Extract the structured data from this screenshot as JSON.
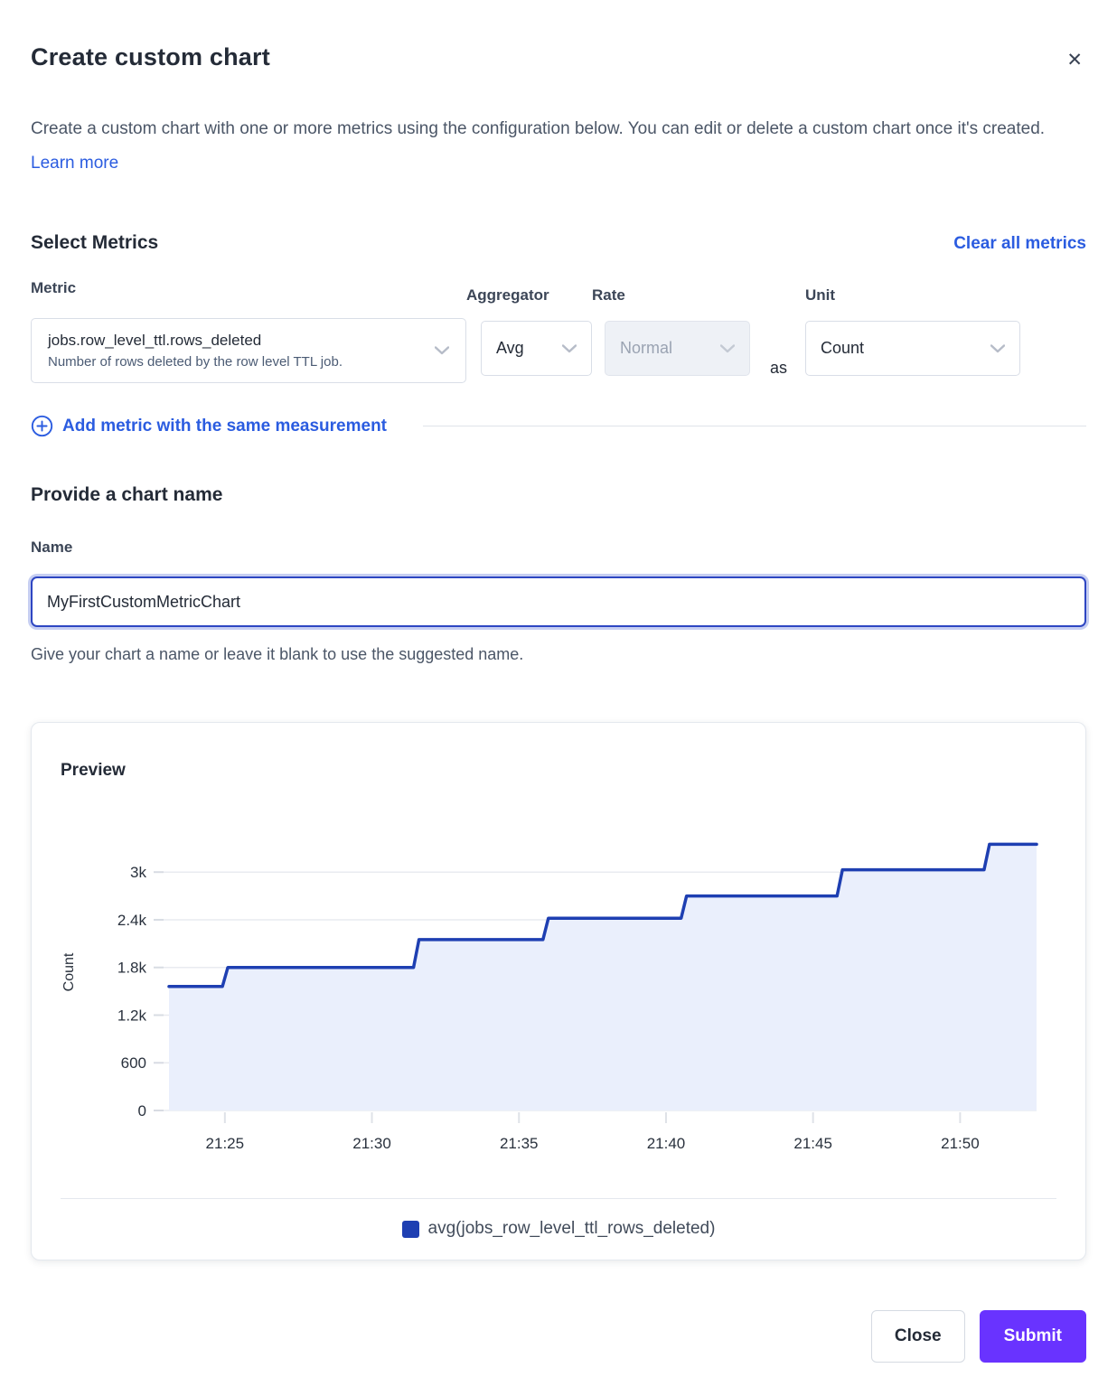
{
  "modal": {
    "title": "Create custom chart",
    "close_icon": "✕",
    "intro": {
      "text": "Create a custom chart with one or more metrics using the configuration below. You can edit or delete a custom chart once it's created.",
      "learn_more_label": "Learn more"
    }
  },
  "metrics_section": {
    "heading": "Select Metrics",
    "clear_all_label": "Clear all metrics",
    "metric": {
      "label": "Metric",
      "value": "jobs.row_level_ttl.rows_deleted",
      "description": "Number of rows deleted by the row level TTL job."
    },
    "aggregator": {
      "label": "Aggregator",
      "value": "Avg"
    },
    "rate": {
      "label": "Rate",
      "value": "Normal",
      "disabled": true
    },
    "as_label": "as",
    "unit": {
      "label": "Unit",
      "value": "Count"
    },
    "add_metric_label": "Add metric with the same measurement"
  },
  "name_section": {
    "heading": "Provide a chart name",
    "label": "Name",
    "value": "MyFirstCustomMetricChart",
    "helper": "Give your chart a name or leave it blank to use the suggested name."
  },
  "preview": {
    "heading": "Preview",
    "legend": [
      {
        "label": "avg(jobs_row_level_ttl_rows_deleted)",
        "color": "#1e3fb2"
      }
    ]
  },
  "chart_data": {
    "type": "area",
    "subtype": "step-after",
    "title": "Preview",
    "xlabel": "",
    "ylabel": "Count",
    "grid": true,
    "legend_position": "bottom",
    "ylim": [
      0,
      3480
    ],
    "xlim_minutes_after_21h": [
      23.1,
      52.6
    ],
    "y_ticks": [
      {
        "value": 0,
        "label": "0"
      },
      {
        "value": 600,
        "label": "600"
      },
      {
        "value": 1200,
        "label": "1.2k"
      },
      {
        "value": 1800,
        "label": "1.8k"
      },
      {
        "value": 2400,
        "label": "2.4k"
      },
      {
        "value": 3000,
        "label": "3k"
      }
    ],
    "x_ticks": [
      {
        "minutes": 25,
        "label": "21:25"
      },
      {
        "minutes": 30,
        "label": "21:30"
      },
      {
        "minutes": 35,
        "label": "21:35"
      },
      {
        "minutes": 40,
        "label": "21:40"
      },
      {
        "minutes": 45,
        "label": "21:45"
      },
      {
        "minutes": 50,
        "label": "21:50"
      }
    ],
    "series": [
      {
        "name": "avg(jobs_row_level_ttl_rows_deleted)",
        "color": "#1e3fb2",
        "fill": "#eaeffc",
        "points": [
          {
            "time": "21:23",
            "minutes": 23.1,
            "value": 1560
          },
          {
            "time": "21:25",
            "minutes": 25.1,
            "value": 1800
          },
          {
            "time": "21:32",
            "minutes": 31.6,
            "value": 2150
          },
          {
            "time": "21:36",
            "minutes": 36.0,
            "value": 2420
          },
          {
            "time": "21:41",
            "minutes": 40.7,
            "value": 2700
          },
          {
            "time": "21:46",
            "minutes": 46.0,
            "value": 3030
          },
          {
            "time": "21:51",
            "minutes": 51.0,
            "value": 3350
          }
        ],
        "end_minutes": 52.6
      }
    ]
  },
  "footer": {
    "close_label": "Close",
    "submit_label": "Submit"
  },
  "colors": {
    "link_blue": "#2b5ce0",
    "line_blue": "#1e3fb2",
    "area_fill": "#eaeffc",
    "submit_purple": "#6933ff"
  }
}
